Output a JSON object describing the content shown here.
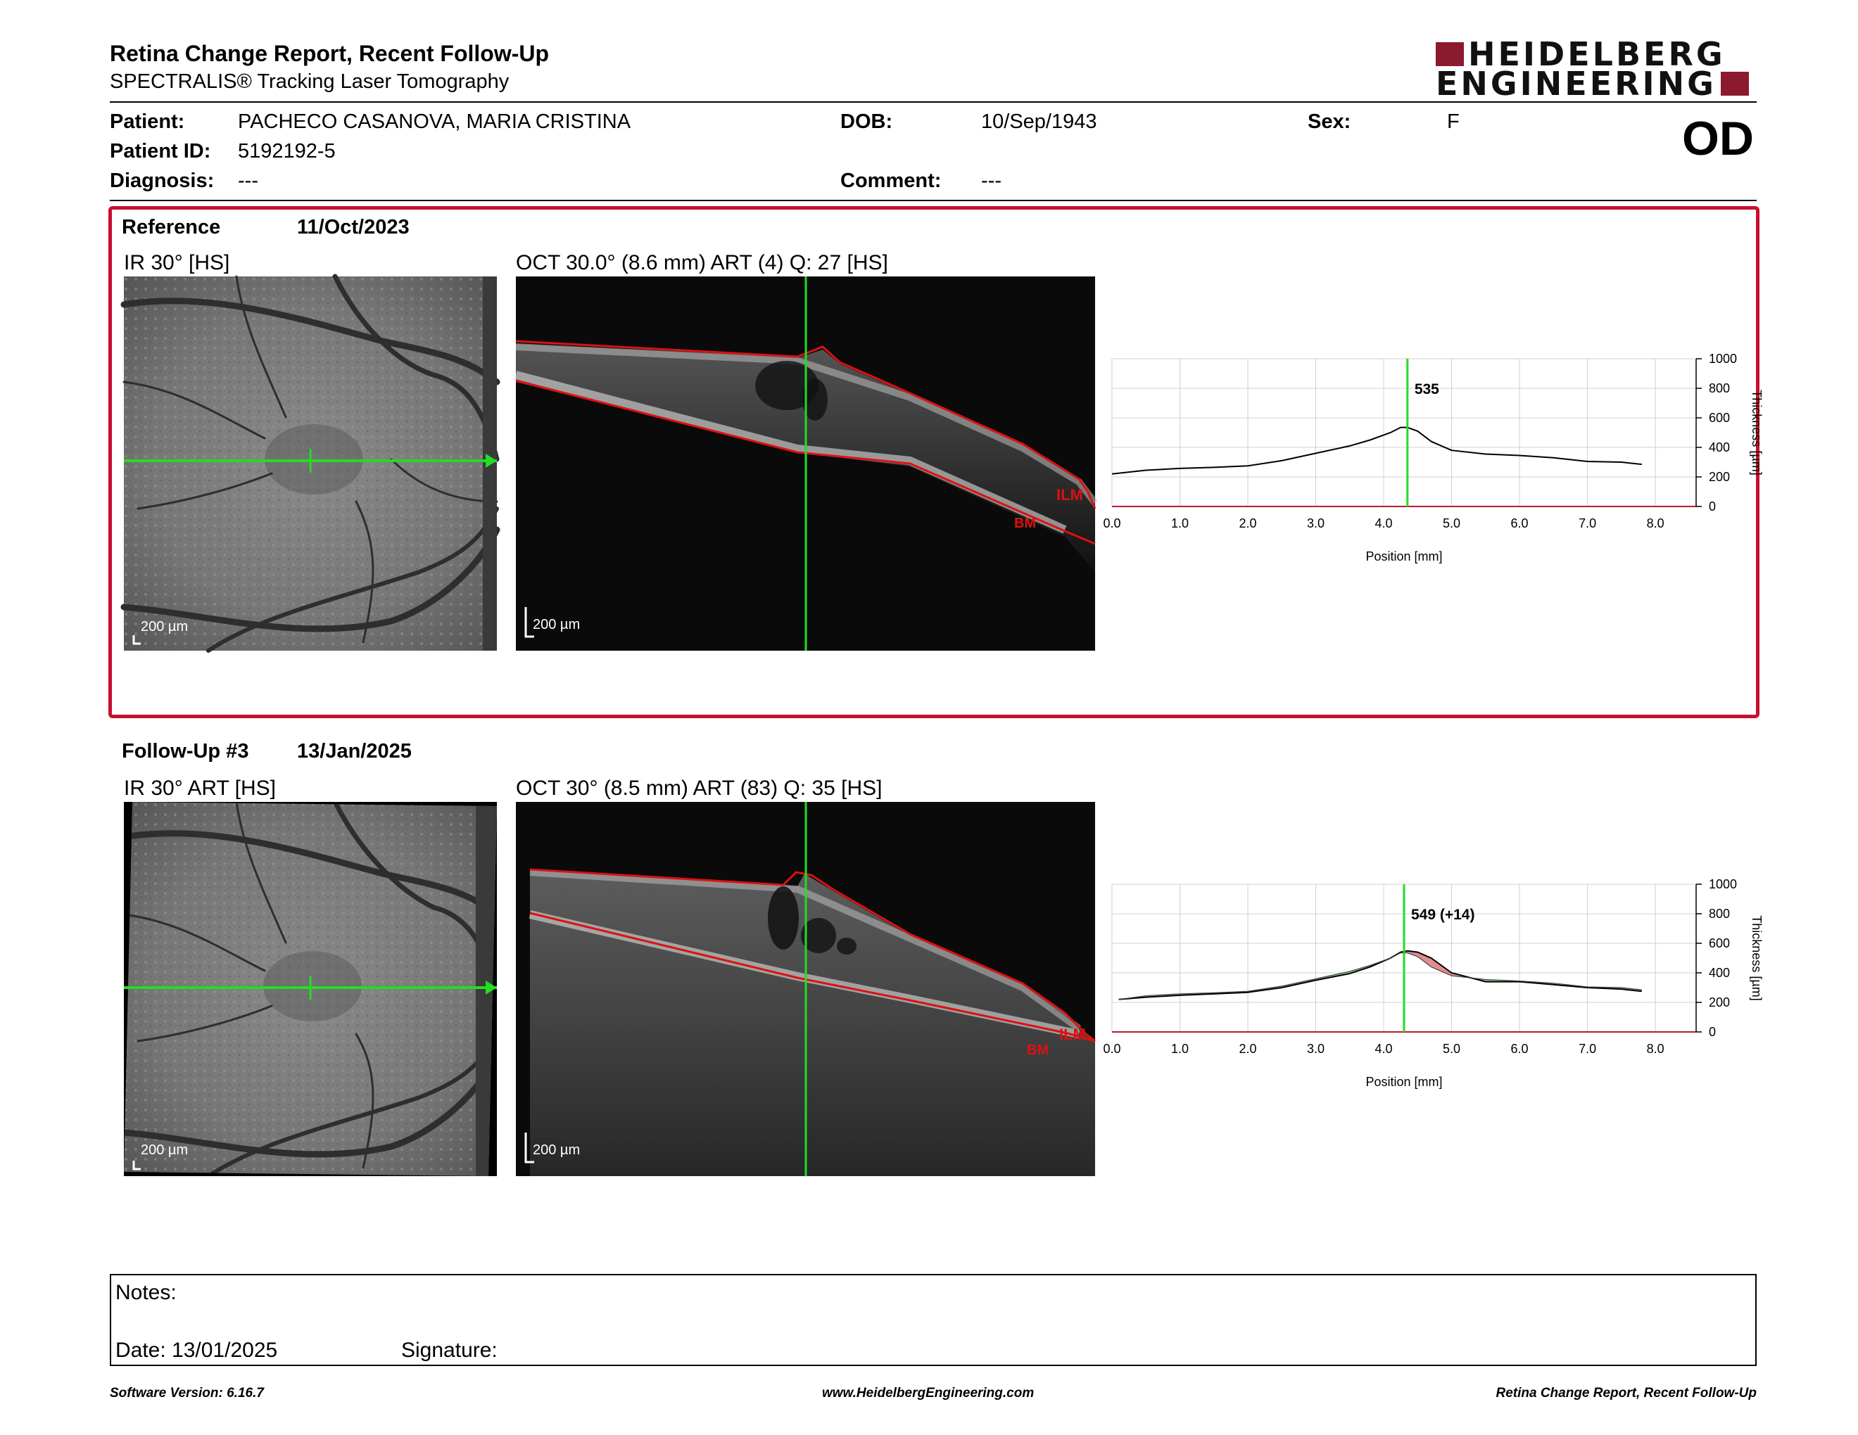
{
  "header": {
    "title": "Retina Change Report, Recent Follow-Up",
    "subtitle": "SPECTRALIS® Tracking Laser Tomography",
    "logo_line1": "HEIDELBERG",
    "logo_line2": "ENGINEERING",
    "eye": "OD"
  },
  "patient": {
    "patient_label": "Patient:",
    "patient_name": "PACHECO CASANOVA, MARIA CRISTINA",
    "id_label": "Patient ID:",
    "patient_id": "5192192-5",
    "diagnosis_label": "Diagnosis:",
    "diagnosis": "---",
    "dob_label": "DOB:",
    "dob": "10/Sep/1943",
    "comment_label": "Comment:",
    "comment": "---",
    "sex_label": "Sex:",
    "sex": "F"
  },
  "reference": {
    "label": "Reference",
    "date": "11/Oct/2023",
    "ir_title": "IR 30° [HS]",
    "oct_title": "OCT 30.0° (8.6 mm) ART (4) Q: 27 [HS]",
    "ir_scale": "200 µm",
    "oct_scale": "200 µm",
    "ilm": "ILM",
    "bm": "BM"
  },
  "followup": {
    "label": "Follow-Up #3",
    "date": "13/Jan/2025",
    "ir_title": "IR 30° ART [HS]",
    "oct_title": "OCT 30° (8.5 mm) ART (83) Q: 35 [HS]",
    "ir_scale": "200 µm",
    "oct_scale": "200 µm",
    "ilm": "ILM",
    "bm": "BM"
  },
  "chart_data": [
    {
      "type": "line",
      "xlabel": "Position [mm]",
      "ylabel": "Thickness [µm]",
      "xlim": [
        0,
        8.6
      ],
      "ylim": [
        0,
        1000
      ],
      "x_ticks": [
        "0.0",
        "1.0",
        "2.0",
        "3.0",
        "4.0",
        "5.0",
        "6.0",
        "7.0",
        "8.0"
      ],
      "y_ticks": [
        "0",
        "200",
        "400",
        "600",
        "800",
        "1000"
      ],
      "cursor_x": 4.35,
      "peak_label": "535",
      "series": [
        {
          "x": [
            0.0,
            0.5,
            1.0,
            1.5,
            2.0,
            2.5,
            3.0,
            3.5,
            3.8,
            4.1,
            4.25,
            4.35,
            4.5,
            4.7,
            5.0,
            5.5,
            6.0,
            6.5,
            7.0,
            7.5,
            7.8
          ],
          "values": [
            220,
            245,
            258,
            265,
            275,
            310,
            360,
            410,
            450,
            500,
            535,
            535,
            510,
            440,
            380,
            355,
            345,
            330,
            305,
            300,
            285
          ]
        }
      ],
      "grid": true
    },
    {
      "type": "line",
      "xlabel": "Position [mm]",
      "ylabel": "Thickness [µm]",
      "xlim": [
        0,
        8.6
      ],
      "ylim": [
        0,
        1000
      ],
      "x_ticks": [
        "0.0",
        "1.0",
        "2.0",
        "3.0",
        "4.0",
        "5.0",
        "6.0",
        "7.0",
        "8.0"
      ],
      "y_ticks": [
        "0",
        "200",
        "400",
        "600",
        "800",
        "1000"
      ],
      "cursor_x": 4.3,
      "peak_label": "549 (+14)",
      "series": [
        {
          "x": [
            0.1,
            0.5,
            1.0,
            1.5,
            2.0,
            2.5,
            3.0,
            3.5,
            3.8,
            4.1,
            4.25,
            4.35,
            4.5,
            4.7,
            5.0,
            5.5,
            6.0,
            6.5,
            7.0,
            7.5,
            7.8
          ],
          "values": [
            220,
            235,
            248,
            258,
            268,
            300,
            350,
            395,
            440,
            500,
            540,
            549,
            540,
            500,
            400,
            340,
            340,
            320,
            300,
            290,
            275
          ]
        },
        {
          "x": [
            0.1,
            0.5,
            1.0,
            1.5,
            2.0,
            2.5,
            3.0,
            3.5,
            3.8,
            4.1,
            4.25,
            4.35,
            4.5,
            4.7,
            5.0,
            5.5,
            6.0,
            6.5,
            7.0,
            7.5,
            7.8
          ],
          "values": [
            220,
            245,
            258,
            265,
            275,
            310,
            360,
            410,
            450,
            500,
            535,
            535,
            510,
            440,
            380,
            355,
            345,
            330,
            305,
            300,
            285
          ]
        }
      ],
      "grid": true
    }
  ],
  "notes": {
    "notes_label": "Notes:",
    "date_label": "Date: 13/01/2025",
    "signature_label": "Signature:"
  },
  "footer": {
    "software": "Software Version: 6.16.7",
    "website": "www.HeidelbergEngineering.com",
    "report": "Retina Change Report, Recent Follow-Up"
  },
  "colors": {
    "ref_frame": "#c8102e",
    "scan_line": "#22dd22",
    "segmentation": "#dd1111",
    "logo_red": "#8b1a2e",
    "increase_fill": "#d97070",
    "decrease_fill": "#66bb66"
  }
}
